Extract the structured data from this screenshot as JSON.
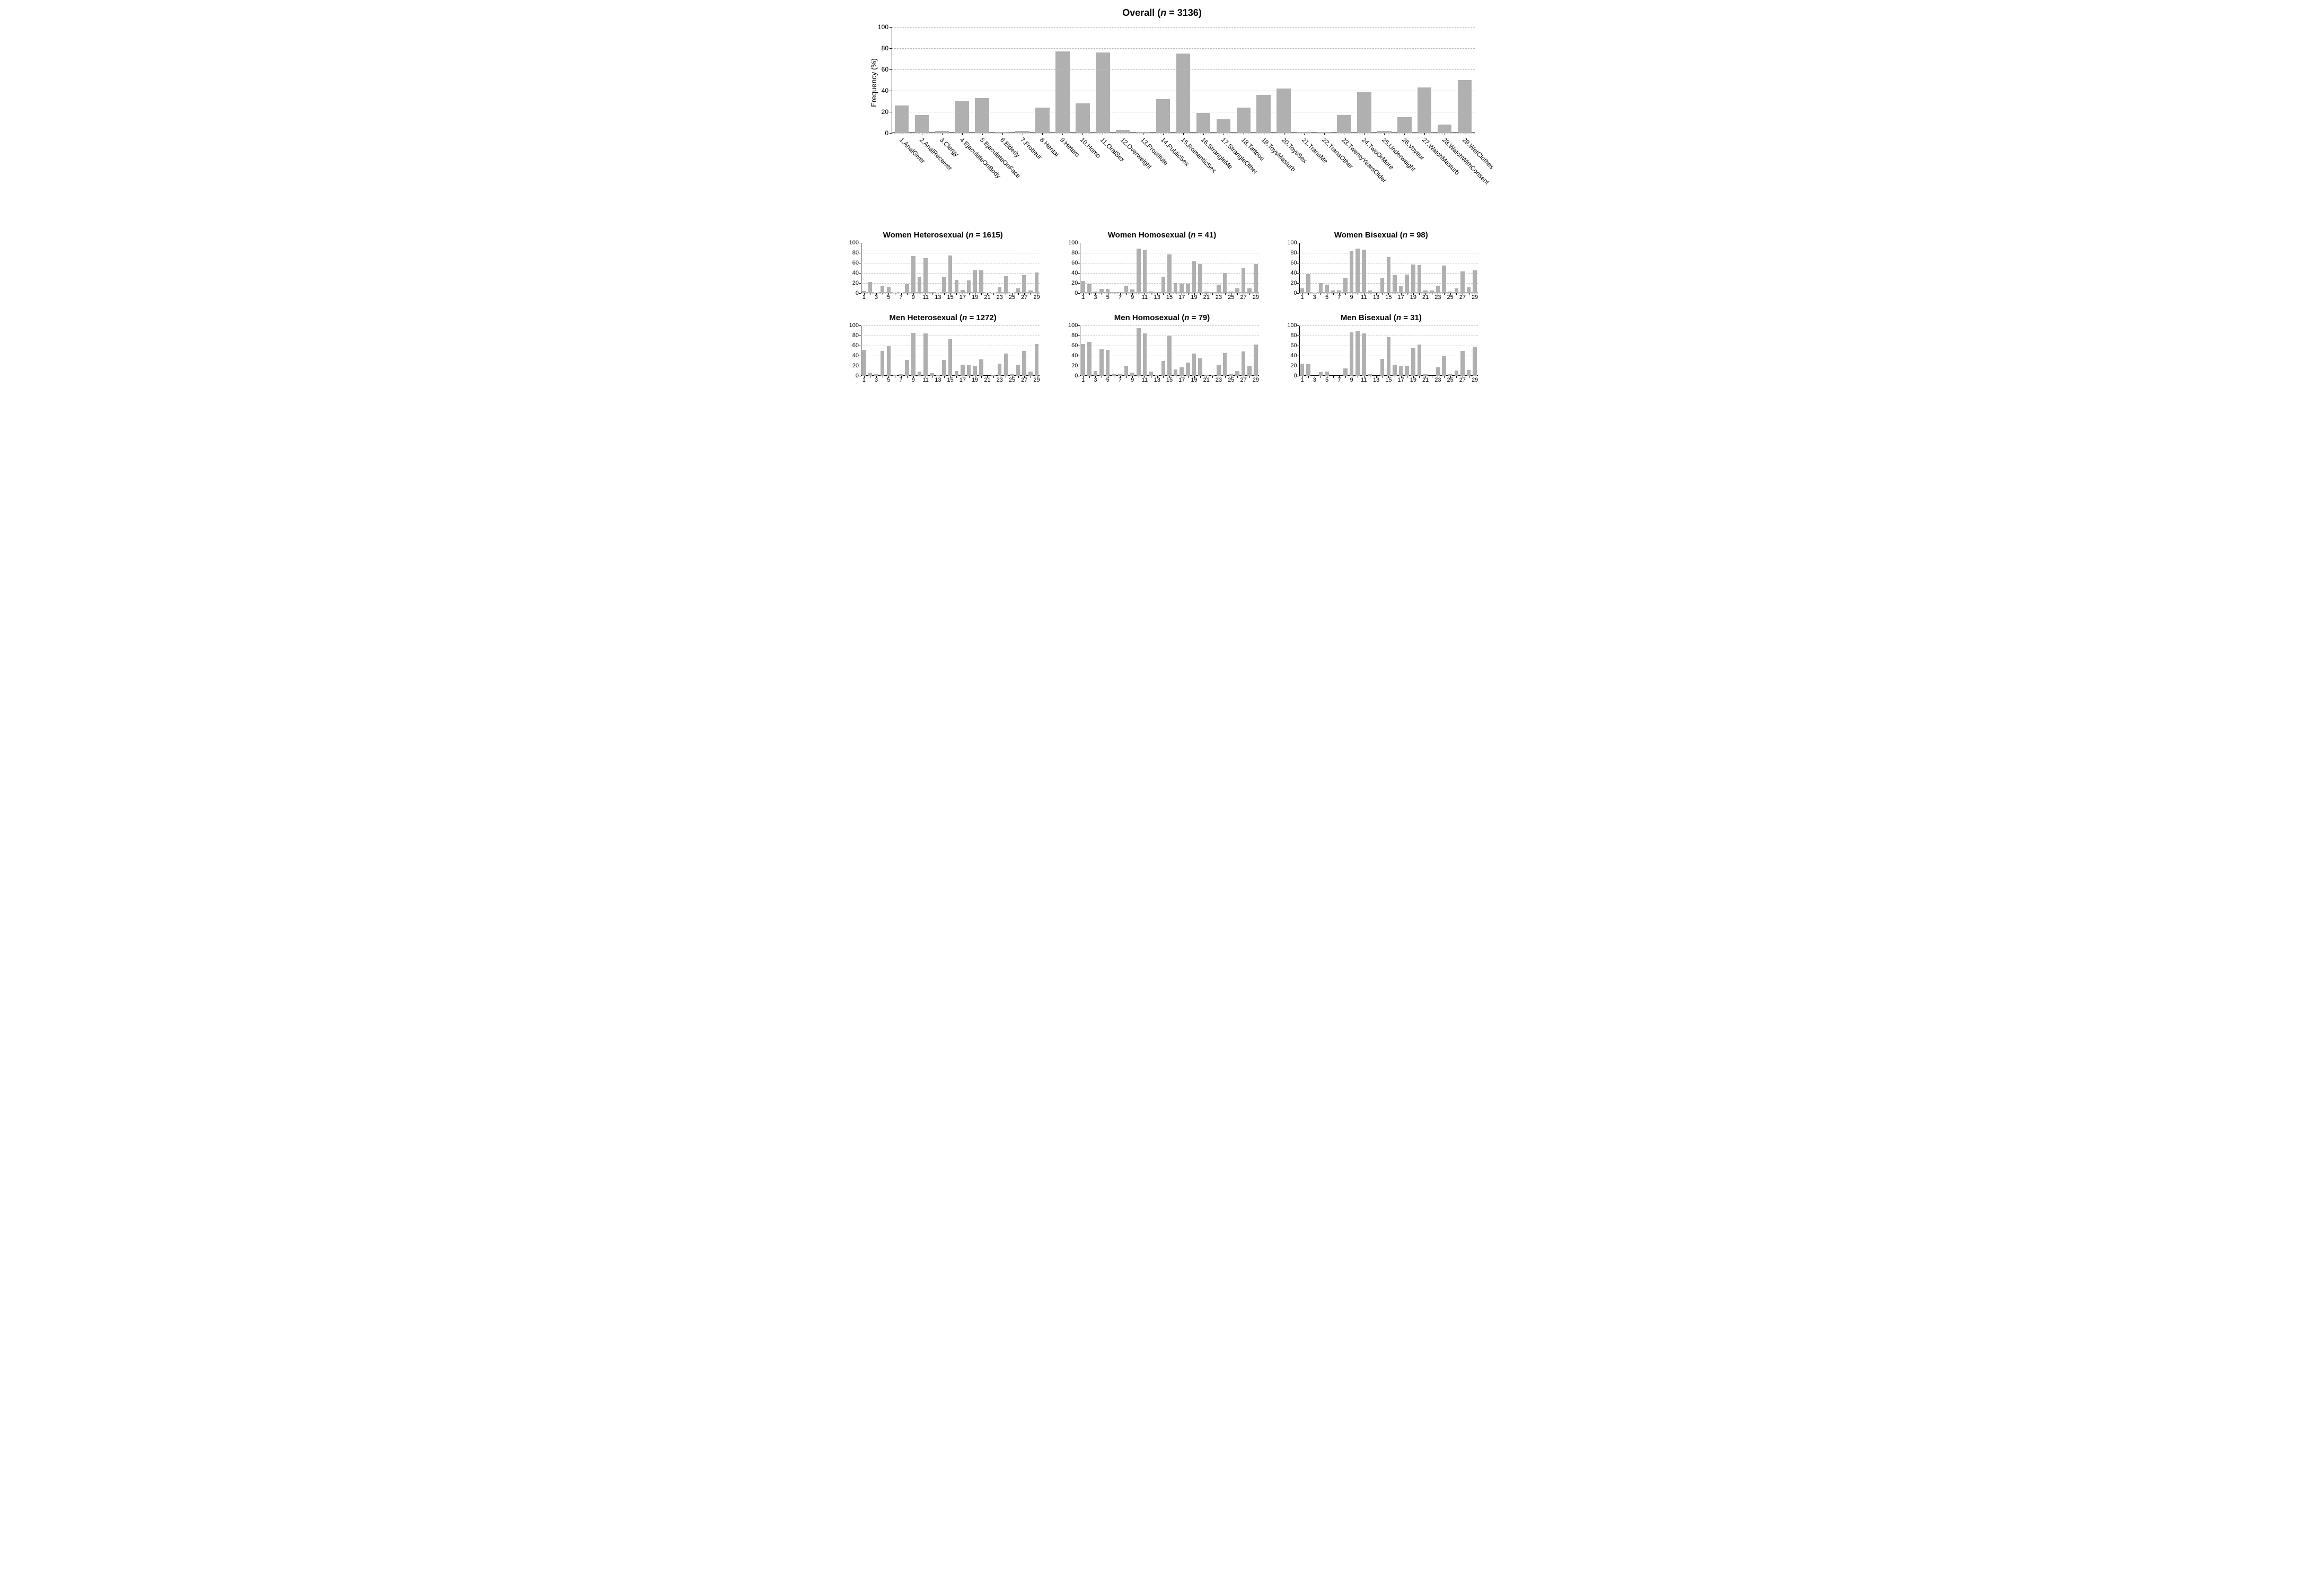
{
  "colors": {
    "bar": "#b0b0b0",
    "grid": "#bbbbbb",
    "axis": "#000000",
    "background": "#ffffff",
    "text": "#000000"
  },
  "fonts": {
    "title_size_pt": 18,
    "small_title_size_pt": 15,
    "axis_label_size_pt": 14,
    "tick_label_size_pt": 12,
    "small_tick_label_size_pt": 11,
    "family": "Arial"
  },
  "y_axis": {
    "title": "Frequency (%)",
    "lim": [
      0,
      100
    ],
    "tick_step": 20,
    "ticks": [
      0,
      20,
      40,
      60,
      80,
      100
    ]
  },
  "main_chart": {
    "type": "bar",
    "title_prefix": "Overall",
    "n": 3136,
    "bar_width_ratio": 0.7,
    "categories": [
      "1.AnalGiver",
      "2.AnalReceiver",
      "3.Clergy",
      "4.EjaculateOnBody",
      "5.EjaculateOnFace",
      "6.Elderly",
      "7.Frotteur",
      "8.Hentai",
      "9.Hetero",
      "10.Homo",
      "11.OralSex",
      "12.Overweight",
      "13.Prostitute",
      "14.PublicSex",
      "15.RomanticSex",
      "16.StrangleMe",
      "17.StrangleOther",
      "18.Tattoos",
      "19.ToysMasturb",
      "20.ToysSex",
      "21.TransMe",
      "22.TransOther",
      "23.TwentyYearsOlder",
      "24.TwoOrMore",
      "25.Underweight",
      "26.Voyeur",
      "27.WatchMasturb",
      "28.WatchWithConsent",
      "29.WetClothes"
    ],
    "values": [
      26,
      17,
      2,
      30,
      33,
      1,
      2,
      24,
      77,
      28,
      76,
      3,
      1,
      32,
      75,
      19,
      13,
      24,
      36,
      42,
      1,
      1,
      17,
      39,
      2,
      15,
      43,
      8,
      50
    ]
  },
  "small_x_labels": [
    1,
    3,
    5,
    7,
    9,
    11,
    13,
    15,
    17,
    19,
    21,
    23,
    25,
    27,
    29
  ],
  "small_charts": [
    {
      "type": "bar",
      "title_prefix": "Women Heterosexual",
      "n": 1615,
      "bar_width_ratio": 0.65,
      "values": [
        4,
        22,
        1,
        14,
        13,
        1,
        1,
        18,
        74,
        33,
        70,
        2,
        1,
        32,
        75,
        26,
        6,
        25,
        45,
        45,
        1,
        1,
        12,
        34,
        1,
        10,
        36,
        5,
        41
      ]
    },
    {
      "type": "bar",
      "title_prefix": "Women Homosexual",
      "n": 41,
      "bar_width_ratio": 0.65,
      "values": [
        24,
        18,
        3,
        8,
        8,
        0,
        0,
        15,
        7,
        88,
        85,
        3,
        0,
        33,
        77,
        20,
        19,
        19,
        63,
        58,
        3,
        0,
        17,
        40,
        3,
        10,
        49,
        10,
        58
      ]
    },
    {
      "type": "bar",
      "title_prefix": "Women Bisexual",
      "n": 98,
      "bar_width_ratio": 0.65,
      "values": [
        10,
        38,
        1,
        20,
        17,
        5,
        5,
        31,
        84,
        88,
        86,
        5,
        2,
        31,
        72,
        36,
        14,
        37,
        57,
        56,
        5,
        5,
        15,
        55,
        3,
        10,
        43,
        12,
        45
      ]
    },
    {
      "type": "bar",
      "title_prefix": "Men Heterosexual",
      "n": 1272,
      "bar_width_ratio": 0.65,
      "values": [
        52,
        6,
        4,
        50,
        59,
        1,
        4,
        32,
        85,
        8,
        84,
        5,
        2,
        32,
        73,
        9,
        22,
        21,
        20,
        33,
        0,
        1,
        24,
        44,
        4,
        22,
        50,
        8,
        63
      ]
    },
    {
      "type": "bar",
      "title_prefix": "Men Homosexual",
      "n": 79,
      "bar_width_ratio": 0.65,
      "values": [
        63,
        67,
        9,
        53,
        52,
        3,
        4,
        20,
        6,
        95,
        84,
        8,
        1,
        30,
        80,
        13,
        17,
        26,
        44,
        35,
        1,
        1,
        21,
        45,
        4,
        10,
        48,
        19,
        62
      ]
    },
    {
      "type": "bar",
      "title_prefix": "Men Bisexual",
      "n": 31,
      "bar_width_ratio": 0.65,
      "values": [
        24,
        23,
        0,
        7,
        8,
        0,
        0,
        15,
        86,
        88,
        84,
        3,
        0,
        34,
        77,
        22,
        19,
        20,
        56,
        62,
        3,
        0,
        17,
        40,
        3,
        11,
        49,
        12,
        58
      ]
    }
  ]
}
